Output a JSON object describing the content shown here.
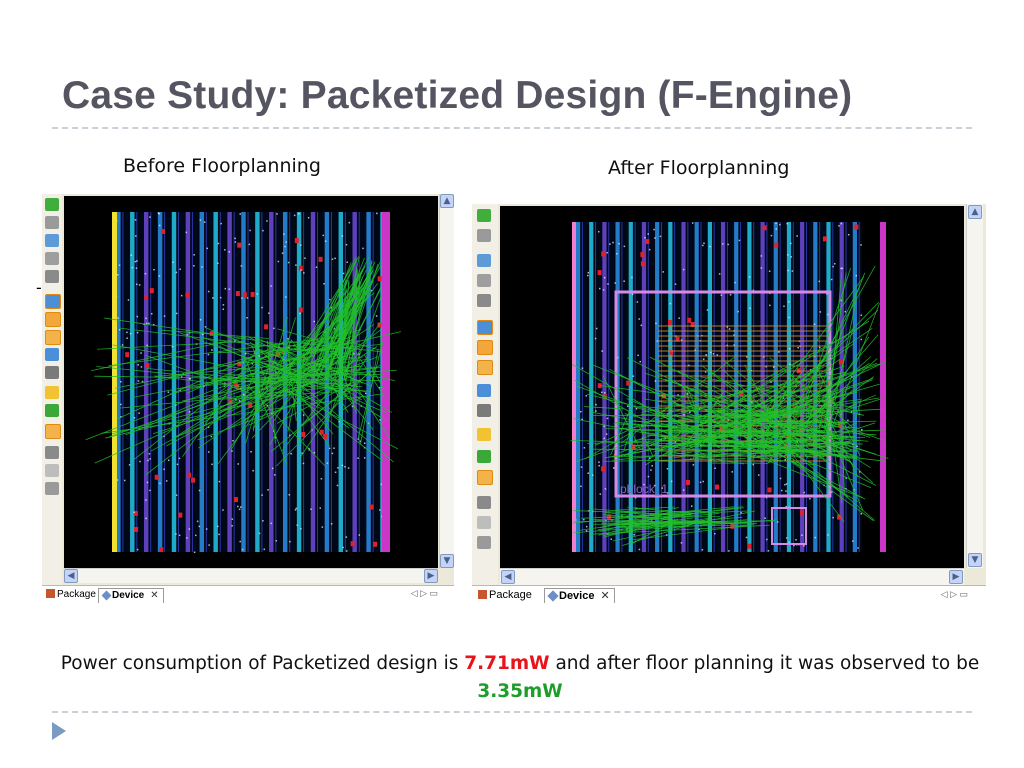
{
  "slide": {
    "title": "Case Study: Packetized Design (F-Engine)",
    "before_label": "Before Floorplanning",
    "after_label": "After Floorplanning",
    "summary_prefix": "Power consumption of Packetized design is ",
    "before_power": "7.71mW",
    "summary_middle": " and after floor planning  it was observed to be ",
    "after_power": "3.35mW",
    "colors": {
      "before_power": "#e8131b",
      "after_power": "#1f9d2b",
      "title": "#555562"
    }
  },
  "panels": {
    "before": {
      "tabs": [
        {
          "label": "Package",
          "icon": "package-icon"
        },
        {
          "label": "Device",
          "icon": "device-icon",
          "active": true
        }
      ]
    },
    "after": {
      "tabs": [
        {
          "label": "Package",
          "icon": "package-icon"
        },
        {
          "label": "Device",
          "icon": "device-icon",
          "active": true
        }
      ],
      "pblock_label": "pblock_1"
    }
  }
}
